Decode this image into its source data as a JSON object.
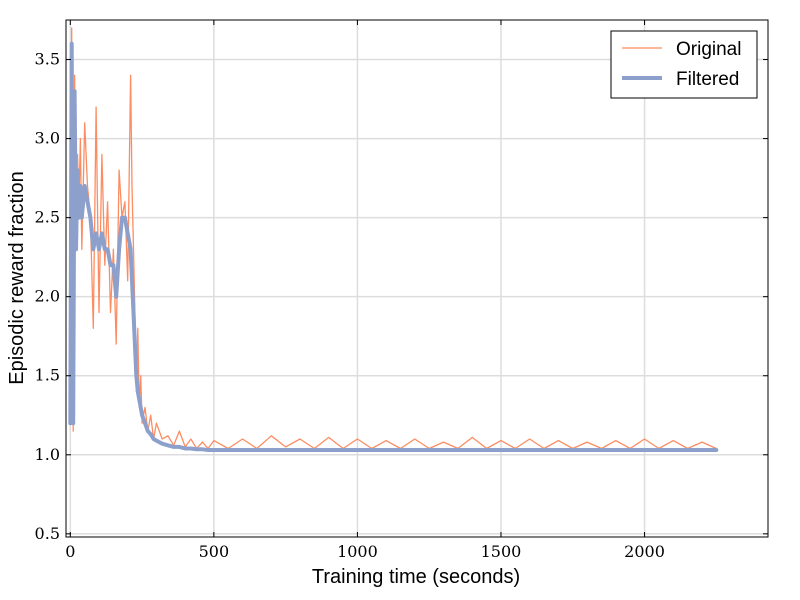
{
  "chart_data": {
    "type": "line",
    "xlabel": "Training time (seconds)",
    "ylabel": "Episodic reward fraction",
    "xlim": [
      -15,
      2430
    ],
    "ylim": [
      0.48,
      3.75
    ],
    "xticks": [
      0,
      500,
      1000,
      1500,
      2000
    ],
    "yticks": [
      0.5,
      1.0,
      1.5,
      2.0,
      2.5,
      3.0,
      3.5
    ],
    "xtick_labels": [
      "0",
      "500",
      "1000",
      "1500",
      "2000"
    ],
    "ytick_labels": [
      "0.5",
      "1.0",
      "1.5",
      "2.0",
      "2.5",
      "3.0",
      "3.5"
    ],
    "grid": true,
    "legend_position": "top-right",
    "series": [
      {
        "name": "Original",
        "color": "#fc8d62",
        "x": [
          0,
          5,
          10,
          15,
          20,
          25,
          30,
          35,
          40,
          50,
          60,
          70,
          80,
          90,
          100,
          110,
          120,
          130,
          140,
          150,
          160,
          170,
          180,
          190,
          200,
          210,
          215,
          220,
          225,
          230,
          235,
          240,
          245,
          250,
          260,
          270,
          280,
          290,
          300,
          320,
          340,
          360,
          380,
          400,
          420,
          440,
          460,
          480,
          500,
          550,
          600,
          650,
          700,
          750,
          800,
          850,
          900,
          950,
          1000,
          1050,
          1100,
          1150,
          1200,
          1250,
          1300,
          1350,
          1400,
          1450,
          1500,
          1550,
          1600,
          1650,
          1700,
          1750,
          1800,
          1850,
          1900,
          1950,
          2000,
          2050,
          2100,
          2150,
          2200,
          2250
        ],
        "y": [
          1.2,
          3.7,
          1.15,
          3.4,
          2.4,
          2.9,
          2.6,
          3.0,
          2.3,
          3.1,
          2.7,
          2.5,
          1.8,
          3.2,
          1.9,
          2.9,
          2.2,
          2.6,
          1.9,
          2.3,
          1.7,
          2.8,
          2.5,
          2.6,
          2.1,
          3.4,
          2.7,
          2.3,
          1.9,
          1.4,
          1.8,
          1.3,
          1.5,
          1.2,
          1.3,
          1.15,
          1.25,
          1.1,
          1.2,
          1.1,
          1.12,
          1.06,
          1.15,
          1.05,
          1.1,
          1.04,
          1.08,
          1.04,
          1.09,
          1.04,
          1.1,
          1.04,
          1.12,
          1.05,
          1.1,
          1.04,
          1.11,
          1.04,
          1.1,
          1.04,
          1.09,
          1.04,
          1.1,
          1.04,
          1.08,
          1.04,
          1.11,
          1.04,
          1.09,
          1.04,
          1.1,
          1.04,
          1.09,
          1.04,
          1.08,
          1.04,
          1.09,
          1.04,
          1.1,
          1.04,
          1.09,
          1.04,
          1.08,
          1.04
        ]
      },
      {
        "name": "Filtered",
        "color": "#8da0cb",
        "x": [
          0,
          5,
          10,
          15,
          20,
          25,
          30,
          35,
          40,
          50,
          60,
          70,
          80,
          90,
          100,
          110,
          120,
          130,
          140,
          150,
          160,
          170,
          180,
          190,
          200,
          210,
          215,
          220,
          225,
          230,
          235,
          240,
          245,
          250,
          260,
          270,
          280,
          290,
          300,
          320,
          340,
          360,
          380,
          400,
          420,
          440,
          460,
          480,
          500,
          550,
          600,
          650,
          700,
          750,
          800,
          850,
          900,
          950,
          1000,
          1050,
          1100,
          1150,
          1200,
          1250,
          1300,
          1350,
          1400,
          1450,
          1500,
          1550,
          1600,
          1650,
          1700,
          1750,
          1800,
          1850,
          1900,
          1950,
          2000,
          2050,
          2100,
          2150,
          2200,
          2250
        ],
        "y": [
          1.2,
          3.6,
          1.2,
          3.3,
          2.3,
          2.8,
          2.5,
          2.7,
          2.5,
          2.7,
          2.6,
          2.5,
          2.3,
          2.4,
          2.3,
          2.4,
          2.3,
          2.3,
          2.2,
          2.2,
          2.0,
          2.3,
          2.5,
          2.5,
          2.4,
          2.3,
          2.1,
          1.9,
          1.7,
          1.5,
          1.4,
          1.35,
          1.3,
          1.25,
          1.2,
          1.15,
          1.13,
          1.1,
          1.09,
          1.07,
          1.06,
          1.05,
          1.05,
          1.04,
          1.04,
          1.035,
          1.035,
          1.03,
          1.03,
          1.03,
          1.03,
          1.03,
          1.03,
          1.03,
          1.03,
          1.03,
          1.03,
          1.03,
          1.03,
          1.03,
          1.03,
          1.03,
          1.03,
          1.03,
          1.03,
          1.03,
          1.03,
          1.03,
          1.03,
          1.03,
          1.03,
          1.03,
          1.03,
          1.03,
          1.03,
          1.03,
          1.03,
          1.03,
          1.03,
          1.03,
          1.03,
          1.03,
          1.03,
          1.03
        ]
      }
    ]
  }
}
